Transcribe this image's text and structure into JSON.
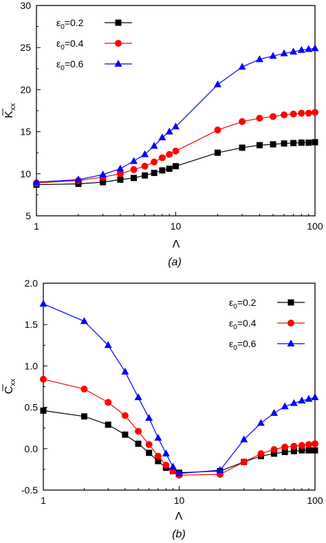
{
  "chart_data": [
    {
      "type": "line",
      "subtitle": "(a)",
      "xlabel": "Λ",
      "ylabel": "K̄xx",
      "ylabel_main": "K",
      "ylabel_sub": "xx",
      "xscale": "log",
      "xlim": [
        1,
        100
      ],
      "ylim": [
        5,
        30
      ],
      "xticks": [
        1,
        10,
        100
      ],
      "xtick_labels": [
        "1",
        "10",
        "100"
      ],
      "yticks": [
        5,
        10,
        15,
        20,
        25,
        30
      ],
      "ytick_labels": [
        "5",
        "10",
        "15",
        "20",
        "25",
        "30"
      ],
      "legend_position": "top-left",
      "x": [
        1,
        2,
        3,
        4,
        5,
        6,
        7,
        8,
        9,
        10,
        20,
        30,
        40,
        50,
        60,
        70,
        80,
        90,
        100
      ],
      "series": [
        {
          "name": "ε0=0.2",
          "legend_main": "ε",
          "legend_sub": "0",
          "legend_value": "=0.2",
          "color": "#000000",
          "marker": "square",
          "values": [
            8.7,
            8.8,
            9.0,
            9.3,
            9.5,
            9.8,
            10.1,
            10.4,
            10.6,
            10.9,
            12.5,
            13.1,
            13.4,
            13.5,
            13.6,
            13.65,
            13.7,
            13.7,
            13.75
          ]
        },
        {
          "name": "ε0=0.4",
          "legend_main": "ε",
          "legend_sub": "0",
          "legend_value": "=0.4",
          "color": "#ff0000",
          "marker": "circle",
          "values": [
            8.9,
            9.2,
            9.6,
            10.0,
            10.5,
            10.9,
            11.4,
            11.9,
            12.3,
            12.7,
            15.2,
            16.2,
            16.6,
            16.8,
            17.0,
            17.1,
            17.2,
            17.2,
            17.3
          ]
        },
        {
          "name": "ε0=0.6",
          "legend_main": "ε",
          "legend_sub": "0",
          "legend_value": "=0.6",
          "color": "#0000ff",
          "marker": "triangle",
          "values": [
            9.0,
            9.3,
            9.9,
            10.6,
            11.5,
            12.3,
            13.3,
            14.3,
            15.0,
            15.6,
            20.6,
            22.7,
            23.6,
            24.0,
            24.3,
            24.5,
            24.7,
            24.8,
            24.9
          ]
        }
      ]
    },
    {
      "type": "line",
      "subtitle": "(b)",
      "xlabel": "Λ",
      "ylabel": "C̄xx",
      "ylabel_main": "C",
      "ylabel_sub": "xx",
      "xscale": "log",
      "xlim": [
        1,
        100
      ],
      "ylim": [
        -0.5,
        2.0
      ],
      "xticks": [
        1,
        10,
        100
      ],
      "xtick_labels": [
        "1",
        "10",
        "100"
      ],
      "yticks": [
        -0.5,
        0.0,
        0.5,
        1.0,
        1.5,
        2.0
      ],
      "ytick_labels": [
        "-0.5",
        "0.0",
        "0.5",
        "1.0",
        "1.5",
        "2.0"
      ],
      "legend_position": "top-right",
      "x": [
        1,
        2,
        3,
        4,
        5,
        6,
        7,
        8,
        9,
        10,
        20,
        30,
        40,
        50,
        60,
        70,
        80,
        90,
        100
      ],
      "series": [
        {
          "name": "ε0=0.2",
          "legend_main": "ε",
          "legend_sub": "0",
          "legend_value": "=0.2",
          "color": "#000000",
          "marker": "square",
          "values": [
            0.46,
            0.39,
            0.29,
            0.17,
            0.06,
            -0.05,
            -0.15,
            -0.23,
            -0.27,
            -0.29,
            -0.27,
            -0.16,
            -0.09,
            -0.06,
            -0.04,
            -0.03,
            -0.02,
            -0.02,
            -0.02
          ]
        },
        {
          "name": "ε0=0.4",
          "legend_main": "ε",
          "legend_sub": "0",
          "legend_value": "=0.4",
          "color": "#ff0000",
          "marker": "circle",
          "values": [
            0.84,
            0.72,
            0.56,
            0.4,
            0.21,
            0.05,
            -0.09,
            -0.2,
            -0.27,
            -0.32,
            -0.31,
            -0.16,
            -0.06,
            -0.01,
            0.02,
            0.03,
            0.04,
            0.05,
            0.06
          ]
        },
        {
          "name": "ε0=0.6",
          "legend_main": "ε",
          "legend_sub": "0",
          "legend_value": "=0.6",
          "color": "#0000ff",
          "marker": "triangle",
          "values": [
            1.75,
            1.54,
            1.25,
            0.93,
            0.62,
            0.37,
            0.13,
            -0.06,
            -0.22,
            -0.3,
            -0.26,
            0.11,
            0.31,
            0.43,
            0.51,
            0.55,
            0.58,
            0.6,
            0.62
          ]
        }
      ]
    }
  ]
}
